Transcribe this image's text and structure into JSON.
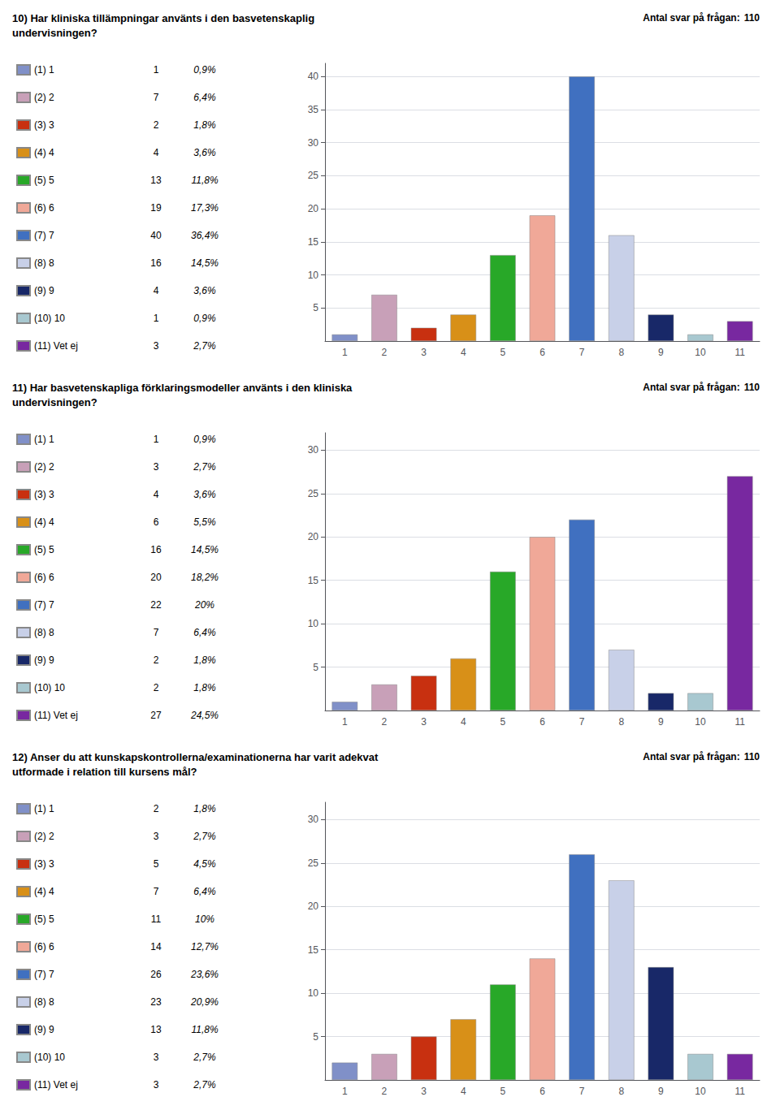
{
  "chart_data": [
    {
      "type": "bar",
      "title": "10) Har kliniska tillämpningar använts i den basvetenskaplig\nundervisningen?",
      "subtitle": "Antal svar på frågan:",
      "responses": 110,
      "categories": [
        "1",
        "2",
        "3",
        "4",
        "5",
        "6",
        "7",
        "8",
        "9",
        "10",
        "11"
      ],
      "series": [
        {
          "name": "(1) 1",
          "color": "#8090C8",
          "values": [
            1,
            null,
            null,
            null,
            null,
            null,
            null,
            null,
            null,
            null,
            null
          ],
          "share": {
            "value": 0.9,
            "label": "0,9%"
          }
        },
        {
          "name": "(2) 2",
          "color": "#C8A0B8",
          "values": [
            null,
            7,
            null,
            null,
            null,
            null,
            null,
            null,
            null,
            null,
            null
          ],
          "share": {
            "value": 6.4,
            "label": "6,4%"
          }
        },
        {
          "name": "(3) 3",
          "color": "#C83010",
          "values": [
            null,
            null,
            2,
            null,
            null,
            null,
            null,
            null,
            null,
            null,
            null
          ],
          "share": {
            "value": 1.8,
            "label": "1,8%"
          }
        },
        {
          "name": "(4) 4",
          "color": "#D89018",
          "values": [
            null,
            null,
            null,
            4,
            null,
            null,
            null,
            null,
            null,
            null,
            null
          ],
          "share": {
            "value": 3.6,
            "label": "3,6%"
          }
        },
        {
          "name": "(5) 5",
          "color": "#28A828",
          "values": [
            null,
            null,
            null,
            null,
            13,
            null,
            null,
            null,
            null,
            null,
            null
          ],
          "share": {
            "value": 11.8,
            "label": "11,8%"
          }
        },
        {
          "name": "(6) 6",
          "color": "#F0A898",
          "values": [
            null,
            null,
            null,
            null,
            null,
            19,
            null,
            null,
            null,
            null,
            null
          ],
          "share": {
            "value": 17.3,
            "label": "17,3%"
          }
        },
        {
          "name": "(7) 7",
          "color": "#4070C0",
          "values": [
            null,
            null,
            null,
            null,
            null,
            null,
            40,
            null,
            null,
            null,
            null
          ],
          "share": {
            "value": 36.4,
            "label": "36,4%"
          }
        },
        {
          "name": "(8) 8",
          "color": "#C8D0E8",
          "values": [
            null,
            null,
            null,
            null,
            null,
            null,
            null,
            16,
            null,
            null,
            null
          ],
          "share": {
            "value": 14.5,
            "label": "14,5%"
          }
        },
        {
          "name": "(9) 9",
          "color": "#182868",
          "values": [
            null,
            null,
            null,
            null,
            null,
            null,
            null,
            null,
            4,
            null,
            null
          ],
          "share": {
            "value": 3.6,
            "label": "3,6%"
          }
        },
        {
          "name": "(10) 10",
          "color": "#A8C8D0",
          "values": [
            null,
            null,
            null,
            null,
            null,
            null,
            null,
            null,
            null,
            1,
            null
          ],
          "share": {
            "value": 0.9,
            "label": "0,9%"
          }
        },
        {
          "name": "(11) Vet ej",
          "color": "#7828A0",
          "values": [
            null,
            null,
            null,
            null,
            null,
            null,
            null,
            null,
            null,
            null,
            3
          ],
          "share": {
            "value": 2.7,
            "label": "2,7%"
          }
        }
      ],
      "ylim": [
        0,
        42
      ],
      "yticks": [
        5,
        10,
        15,
        20,
        25,
        30,
        35,
        40
      ],
      "grid": true,
      "legend": "left"
    },
    {
      "type": "bar",
      "title": "11) Har basvetenskapliga förklaringsmodeller använts i den kliniska\nundervisningen?",
      "subtitle": "Antal svar på frågan:",
      "responses": 110,
      "categories": [
        "1",
        "2",
        "3",
        "4",
        "5",
        "6",
        "7",
        "8",
        "9",
        "10",
        "11"
      ],
      "series": [
        {
          "name": "(1) 1",
          "color": "#8090C8",
          "values": [
            1,
            null,
            null,
            null,
            null,
            null,
            null,
            null,
            null,
            null,
            null
          ],
          "share": {
            "value": 0.9,
            "label": "0,9%"
          }
        },
        {
          "name": "(2) 2",
          "color": "#C8A0B8",
          "values": [
            null,
            3,
            null,
            null,
            null,
            null,
            null,
            null,
            null,
            null,
            null
          ],
          "share": {
            "value": 2.7,
            "label": "2,7%"
          }
        },
        {
          "name": "(3) 3",
          "color": "#C83010",
          "values": [
            null,
            null,
            4,
            null,
            null,
            null,
            null,
            null,
            null,
            null,
            null
          ],
          "share": {
            "value": 3.6,
            "label": "3,6%"
          }
        },
        {
          "name": "(4) 4",
          "color": "#D89018",
          "values": [
            null,
            null,
            null,
            6,
            null,
            null,
            null,
            null,
            null,
            null,
            null
          ],
          "share": {
            "value": 5.5,
            "label": "5,5%"
          }
        },
        {
          "name": "(5) 5",
          "color": "#28A828",
          "values": [
            null,
            null,
            null,
            null,
            16,
            null,
            null,
            null,
            null,
            null,
            null
          ],
          "share": {
            "value": 14.5,
            "label": "14,5%"
          }
        },
        {
          "name": "(6) 6",
          "color": "#F0A898",
          "values": [
            null,
            null,
            null,
            null,
            null,
            20,
            null,
            null,
            null,
            null,
            null
          ],
          "share": {
            "value": 18.2,
            "label": "18,2%"
          }
        },
        {
          "name": "(7) 7",
          "color": "#4070C0",
          "values": [
            null,
            null,
            null,
            null,
            null,
            null,
            22,
            null,
            null,
            null,
            null
          ],
          "share": {
            "value": 20,
            "label": "20%"
          }
        },
        {
          "name": "(8) 8",
          "color": "#C8D0E8",
          "values": [
            null,
            null,
            null,
            null,
            null,
            null,
            null,
            7,
            null,
            null,
            null
          ],
          "share": {
            "value": 6.4,
            "label": "6,4%"
          }
        },
        {
          "name": "(9) 9",
          "color": "#182868",
          "values": [
            null,
            null,
            null,
            null,
            null,
            null,
            null,
            null,
            2,
            null,
            null
          ],
          "share": {
            "value": 1.8,
            "label": "1,8%"
          }
        },
        {
          "name": "(10) 10",
          "color": "#A8C8D0",
          "values": [
            null,
            null,
            null,
            null,
            null,
            null,
            null,
            null,
            null,
            2,
            null
          ],
          "share": {
            "value": 1.8,
            "label": "1,8%"
          }
        },
        {
          "name": "(11) Vet ej",
          "color": "#7828A0",
          "values": [
            null,
            null,
            null,
            null,
            null,
            null,
            null,
            null,
            null,
            null,
            27
          ],
          "share": {
            "value": 24.5,
            "label": "24,5%"
          }
        }
      ],
      "ylim": [
        0,
        32
      ],
      "yticks": [
        5,
        10,
        15,
        20,
        25,
        30
      ],
      "grid": true,
      "legend": "left"
    },
    {
      "type": "bar",
      "title": "12) Anser du att kunskapskontrollerna/examinationerna har varit adekvat\nutformade i relation till kursens mål?",
      "subtitle": "Antal svar på frågan:",
      "responses": 110,
      "categories": [
        "1",
        "2",
        "3",
        "4",
        "5",
        "6",
        "7",
        "8",
        "9",
        "10",
        "11"
      ],
      "series": [
        {
          "name": "(1) 1",
          "color": "#8090C8",
          "values": [
            2,
            null,
            null,
            null,
            null,
            null,
            null,
            null,
            null,
            null,
            null
          ],
          "share": {
            "value": 1.8,
            "label": "1,8%"
          }
        },
        {
          "name": "(2) 2",
          "color": "#C8A0B8",
          "values": [
            null,
            3,
            null,
            null,
            null,
            null,
            null,
            null,
            null,
            null,
            null
          ],
          "share": {
            "value": 2.7,
            "label": "2,7%"
          }
        },
        {
          "name": "(3) 3",
          "color": "#C83010",
          "values": [
            null,
            null,
            5,
            null,
            null,
            null,
            null,
            null,
            null,
            null,
            null
          ],
          "share": {
            "value": 4.5,
            "label": "4,5%"
          }
        },
        {
          "name": "(4) 4",
          "color": "#D89018",
          "values": [
            null,
            null,
            null,
            7,
            null,
            null,
            null,
            null,
            null,
            null,
            null
          ],
          "share": {
            "value": 6.4,
            "label": "6,4%"
          }
        },
        {
          "name": "(5) 5",
          "color": "#28A828",
          "values": [
            null,
            null,
            null,
            null,
            11,
            null,
            null,
            null,
            null,
            null,
            null
          ],
          "share": {
            "value": 10,
            "label": "10%"
          }
        },
        {
          "name": "(6) 6",
          "color": "#F0A898",
          "values": [
            null,
            null,
            null,
            null,
            null,
            14,
            null,
            null,
            null,
            null,
            null
          ],
          "share": {
            "value": 12.7,
            "label": "12,7%"
          }
        },
        {
          "name": "(7) 7",
          "color": "#4070C0",
          "values": [
            null,
            null,
            null,
            null,
            null,
            null,
            26,
            null,
            null,
            null,
            null
          ],
          "share": {
            "value": 23.6,
            "label": "23,6%"
          }
        },
        {
          "name": "(8) 8",
          "color": "#C8D0E8",
          "values": [
            null,
            null,
            null,
            null,
            null,
            null,
            null,
            23,
            null,
            null,
            null
          ],
          "share": {
            "value": 20.9,
            "label": "20,9%"
          }
        },
        {
          "name": "(9) 9",
          "color": "#182868",
          "values": [
            null,
            null,
            null,
            null,
            null,
            null,
            null,
            null,
            13,
            null,
            null
          ],
          "share": {
            "value": 11.8,
            "label": "11,8%"
          }
        },
        {
          "name": "(10) 10",
          "color": "#A8C8D0",
          "values": [
            null,
            null,
            null,
            null,
            null,
            null,
            null,
            null,
            null,
            3,
            null
          ],
          "share": {
            "value": 2.7,
            "label": "2,7%"
          }
        },
        {
          "name": "(11) Vet ej",
          "color": "#7828A0",
          "values": [
            null,
            null,
            null,
            null,
            null,
            null,
            null,
            null,
            null,
            null,
            3
          ],
          "share": {
            "value": 2.7,
            "label": "2,7%"
          }
        }
      ],
      "ylim": [
        0,
        32
      ],
      "yticks": [
        5,
        10,
        15,
        20,
        25,
        30
      ],
      "grid": true,
      "legend": "left"
    }
  ]
}
